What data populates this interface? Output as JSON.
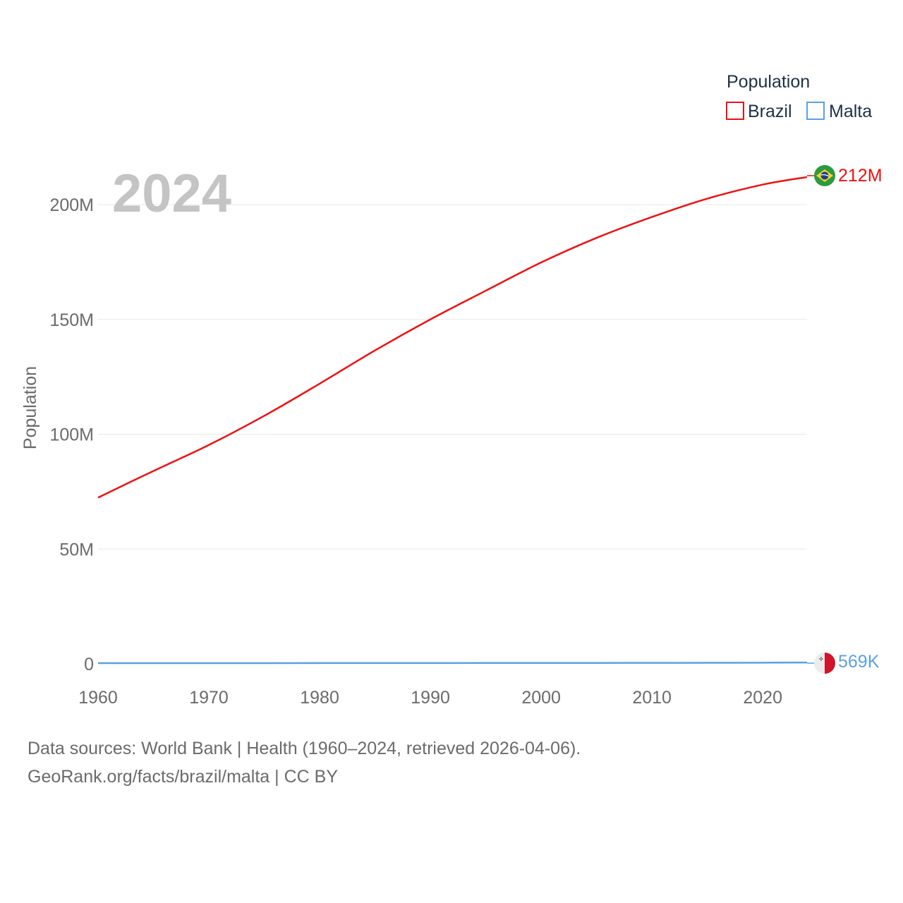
{
  "chart_data": {
    "type": "line",
    "title": "",
    "year_label": "2024",
    "xlabel": "",
    "ylabel": "Population",
    "xlim": [
      1960,
      2024
    ],
    "ylim": [
      0,
      220000000
    ],
    "x_ticks": [
      1960,
      1970,
      1980,
      1990,
      2000,
      2010,
      2020
    ],
    "x_tick_labels": [
      "1960",
      "1970",
      "1980",
      "1990",
      "2000",
      "2010",
      "2020"
    ],
    "y_ticks": [
      0,
      50000000,
      100000000,
      150000000,
      200000000
    ],
    "y_tick_labels": [
      "0",
      "50M",
      "100M",
      "150M",
      "200M"
    ],
    "grid": true,
    "legend": {
      "title": "Population",
      "position": "top-right"
    },
    "series": [
      {
        "name": "Brazil",
        "color": "#ee1111",
        "end_label": "212M",
        "flag_icon": "brazil-flag-icon",
        "x": [
          1960,
          1965,
          1970,
          1975,
          1980,
          1985,
          1990,
          1995,
          2000,
          2005,
          2010,
          2015,
          2020,
          2024
        ],
        "values": [
          72400000,
          84000000,
          95300000,
          108000000,
          122000000,
          136500000,
          150000000,
          162500000,
          174800000,
          185500000,
          194600000,
          202600000,
          208700000,
          212000000
        ]
      },
      {
        "name": "Malta",
        "color": "#5aa0e6",
        "end_label": "569K",
        "flag_icon": "malta-flag-icon",
        "x": [
          1960,
          1965,
          1970,
          1975,
          1980,
          1985,
          1990,
          1995,
          2000,
          2005,
          2010,
          2015,
          2020,
          2024
        ],
        "values": [
          312000,
          316000,
          310000,
          320000,
          330000,
          342000,
          360000,
          372000,
          390000,
          403000,
          414000,
          445000,
          515000,
          569000
        ]
      }
    ]
  },
  "footer": {
    "line1": "Data sources: World Bank | Health (1960–2024, retrieved 2026-04-06).",
    "line2": "GeoRank.org/facts/brazil/malta | CC BY"
  }
}
